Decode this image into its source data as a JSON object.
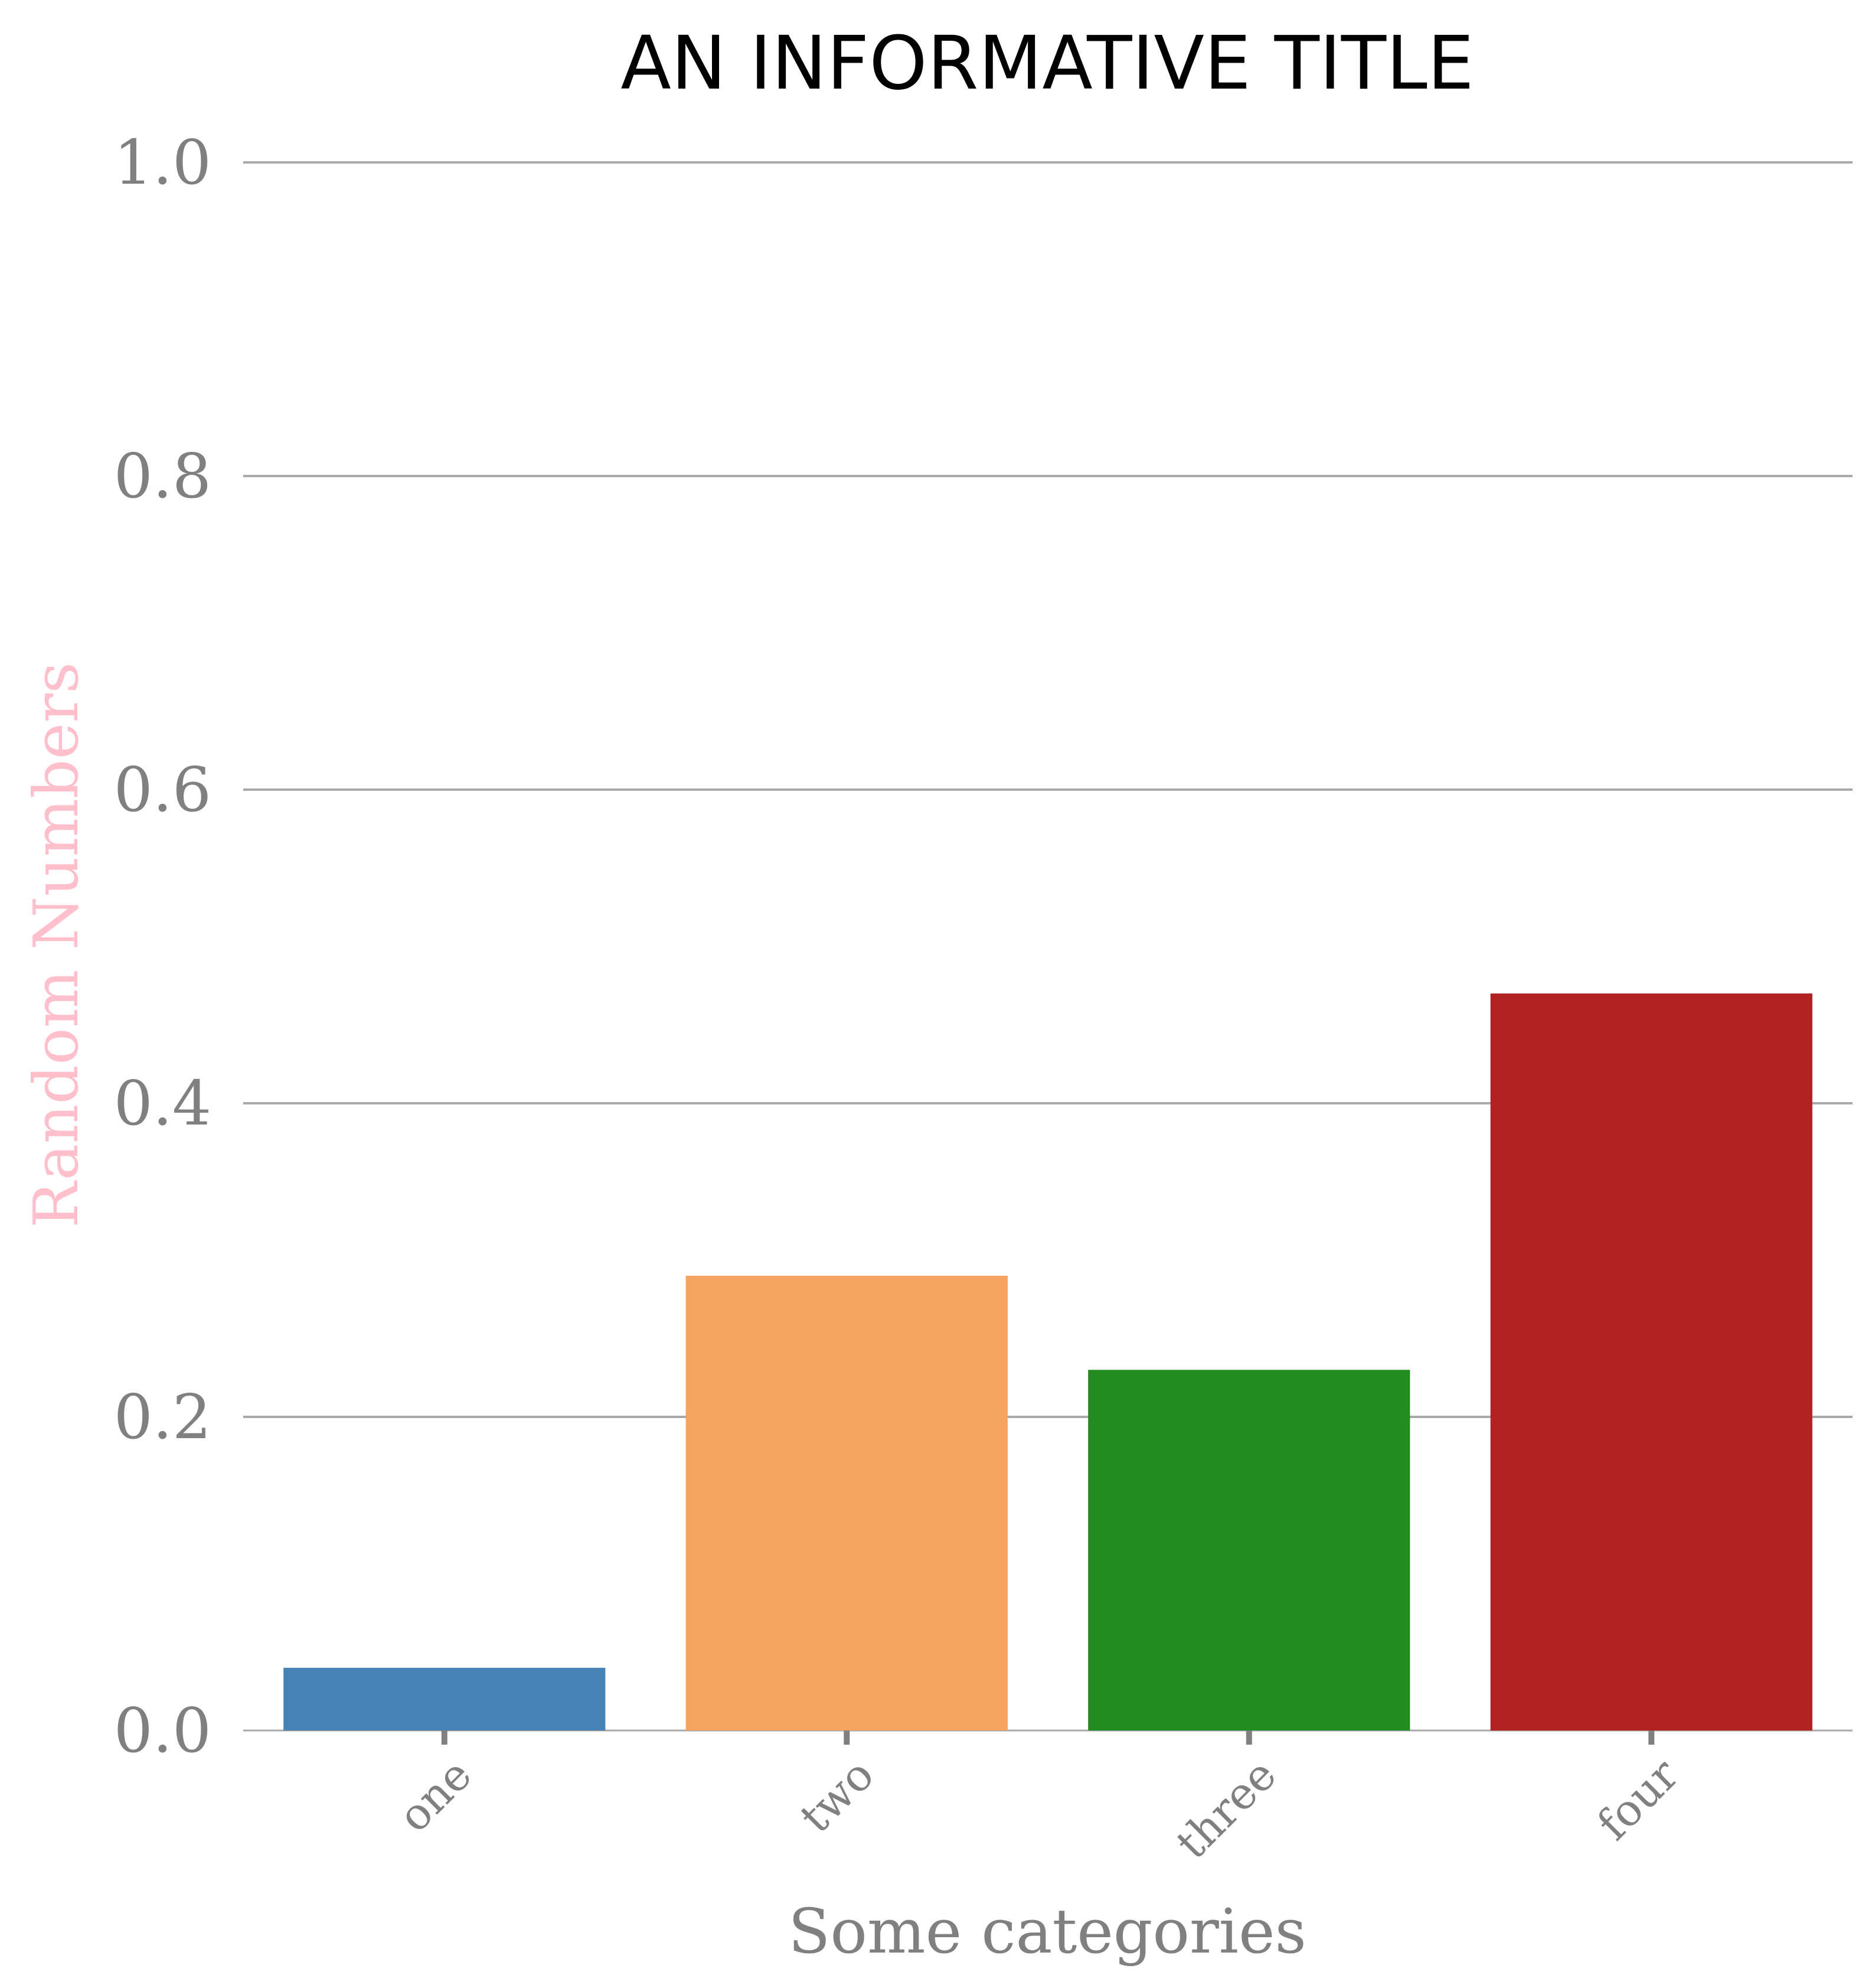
{
  "chart_data": {
    "type": "bar",
    "title": "AN INFORMATIVE TITLE",
    "xlabel": "Some categories",
    "ylabel": "Random Numbers",
    "categories": [
      "one",
      "two",
      "three",
      "four"
    ],
    "values": [
      0.04,
      0.29,
      0.23,
      0.47
    ],
    "colors": [
      "#4682b4",
      "#f4a460",
      "#228b22",
      "#b22222"
    ],
    "ylim": [
      0,
      1.0
    ],
    "yticks": [
      "0.0",
      "0.2",
      "0.4",
      "0.6",
      "0.8",
      "1.0"
    ],
    "grid": "horizontal",
    "ylabel_color": "#ffc0cb",
    "tick_color": "#808080",
    "grid_color": "#a9a9a9"
  }
}
